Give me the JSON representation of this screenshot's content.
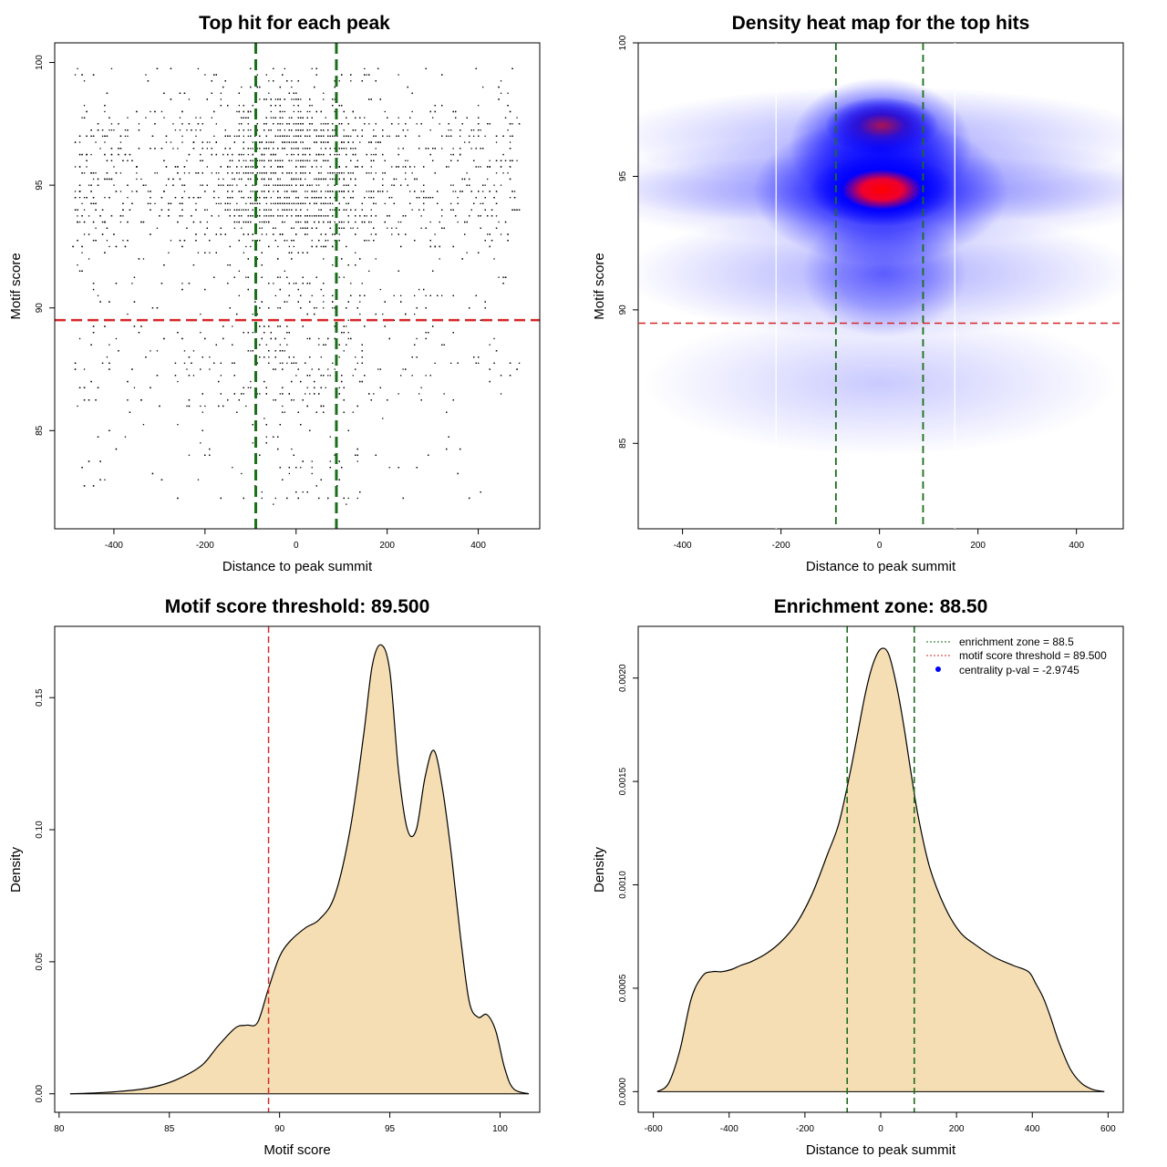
{
  "colors": {
    "scatter_point": "#000000",
    "threshold_line": "#d62728",
    "zone_line": "#1a6e1a",
    "density_fill": "#f5deb3",
    "heat_low": "#ffffff",
    "heat_mid": "#0000ff",
    "heat_high": "#ff0000",
    "legend_point": "#0000ff"
  },
  "chart_data": [
    {
      "type": "scatter",
      "title": "Top hit for each peak",
      "xlabel": "Distance to peak summit",
      "ylabel": "Motif score",
      "xlim": [
        -530,
        535
      ],
      "ylim": [
        81,
        100.8
      ],
      "xticks": [
        -400,
        -200,
        0,
        200,
        400
      ],
      "yticks": [
        85,
        90,
        95,
        100
      ],
      "grid": false,
      "hlines": [
        89.5
      ],
      "vlines": [
        -88.5,
        88.5
      ],
      "points_description": "dense cloud of top motif hits spread over x in [-490, 490]; motif scores mostly 86-100 with highest density around 94-98 near x = 0; sparse hits down to about 82"
    },
    {
      "type": "heatmap",
      "title": "Density heat map for the top hits",
      "xlabel": "Distance to peak summit",
      "ylabel": "Motif score",
      "xlim": [
        -490,
        495
      ],
      "ylim": [
        81.8,
        100
      ],
      "xticks": [
        -400,
        -200,
        0,
        200,
        400
      ],
      "yticks": [
        85,
        90,
        95,
        100
      ],
      "hlines": [
        89.5
      ],
      "vlines": [
        -88.5,
        88.5
      ],
      "hotspots": [
        {
          "x": 5,
          "y": 94.5,
          "level": 1.0
        },
        {
          "x": 5,
          "y": 96.9,
          "level": 0.75
        }
      ]
    },
    {
      "type": "area",
      "title": "Motif score threshold: 89.500",
      "xlabel": "Motif score",
      "ylabel": "Density",
      "xlim": [
        79.8,
        101.8
      ],
      "ylim": [
        -0.007,
        0.177
      ],
      "xticks": [
        80,
        85,
        90,
        95,
        100
      ],
      "yticks": [
        0.0,
        0.05,
        0.1,
        0.15
      ],
      "ytick_labels": [
        "0.00",
        "0.05",
        "0.10",
        "0.15"
      ],
      "vlines": [
        89.5
      ],
      "x": [
        80.5,
        82,
        83.5,
        84.5,
        85.5,
        86.5,
        87.2,
        88.0,
        88.5,
        89.0,
        89.5,
        90.0,
        90.5,
        91.2,
        91.8,
        92.5,
        93.2,
        93.8,
        94.2,
        94.6,
        95.0,
        95.4,
        95.8,
        96.2,
        96.6,
        97.0,
        97.4,
        97.8,
        98.2,
        98.6,
        99.0,
        99.4,
        99.8,
        100.2,
        100.6,
        101.3
      ],
      "y": [
        0.0,
        0.0005,
        0.0015,
        0.003,
        0.006,
        0.011,
        0.018,
        0.025,
        0.026,
        0.027,
        0.04,
        0.052,
        0.058,
        0.063,
        0.066,
        0.075,
        0.1,
        0.135,
        0.162,
        0.17,
        0.16,
        0.122,
        0.1,
        0.1,
        0.12,
        0.13,
        0.115,
        0.09,
        0.06,
        0.035,
        0.029,
        0.03,
        0.024,
        0.01,
        0.002,
        0.0
      ]
    },
    {
      "type": "area",
      "title": "Enrichment zone: 88.50",
      "xlabel": "Distance to peak summit",
      "ylabel": "Density",
      "xlim": [
        -640,
        640
      ],
      "ylim": [
        -0.0001,
        0.00225
      ],
      "xticks": [
        -600,
        -400,
        -200,
        0,
        200,
        400,
        600
      ],
      "yticks": [
        0.0,
        0.0005,
        0.001,
        0.0015,
        0.002
      ],
      "ytick_labels": [
        "0.0000",
        "0.0005",
        "0.0010",
        "0.0015",
        "0.0020"
      ],
      "vlines": [
        -88.5,
        88.5
      ],
      "legend_position": "top-right",
      "legend": [
        {
          "label": "enrichment zone = 88.5",
          "style": "dotted-line",
          "color": "#1a6e1a"
        },
        {
          "label": "motif score threshold = 89.500",
          "style": "dotted-line",
          "color": "#d62728"
        },
        {
          "label": "centrality p-val = -2.9745",
          "style": "point",
          "color": "#0000ff"
        }
      ],
      "x": [
        -590,
        -560,
        -530,
        -500,
        -470,
        -445,
        -420,
        -395,
        -370,
        -340,
        -300,
        -260,
        -220,
        -180,
        -140,
        -110,
        -80,
        -60,
        -40,
        -20,
        0,
        20,
        40,
        60,
        80,
        100,
        130,
        170,
        210,
        250,
        300,
        350,
        390,
        410,
        430,
        450,
        470,
        500,
        530,
        560,
        590
      ],
      "y": [
        0.0,
        4e-05,
        0.0002,
        0.00045,
        0.00056,
        0.00058,
        0.00058,
        0.00059,
        0.00061,
        0.00063,
        0.00067,
        0.00073,
        0.00082,
        0.00096,
        0.00115,
        0.0013,
        0.00155,
        0.00174,
        0.00193,
        0.00207,
        0.00214,
        0.00212,
        0.00198,
        0.00178,
        0.00154,
        0.00132,
        0.00108,
        0.00089,
        0.00077,
        0.00071,
        0.00065,
        0.00061,
        0.00058,
        0.00052,
        0.00045,
        0.00035,
        0.00024,
        0.00011,
        4e-05,
        1e-05,
        0.0
      ]
    }
  ]
}
